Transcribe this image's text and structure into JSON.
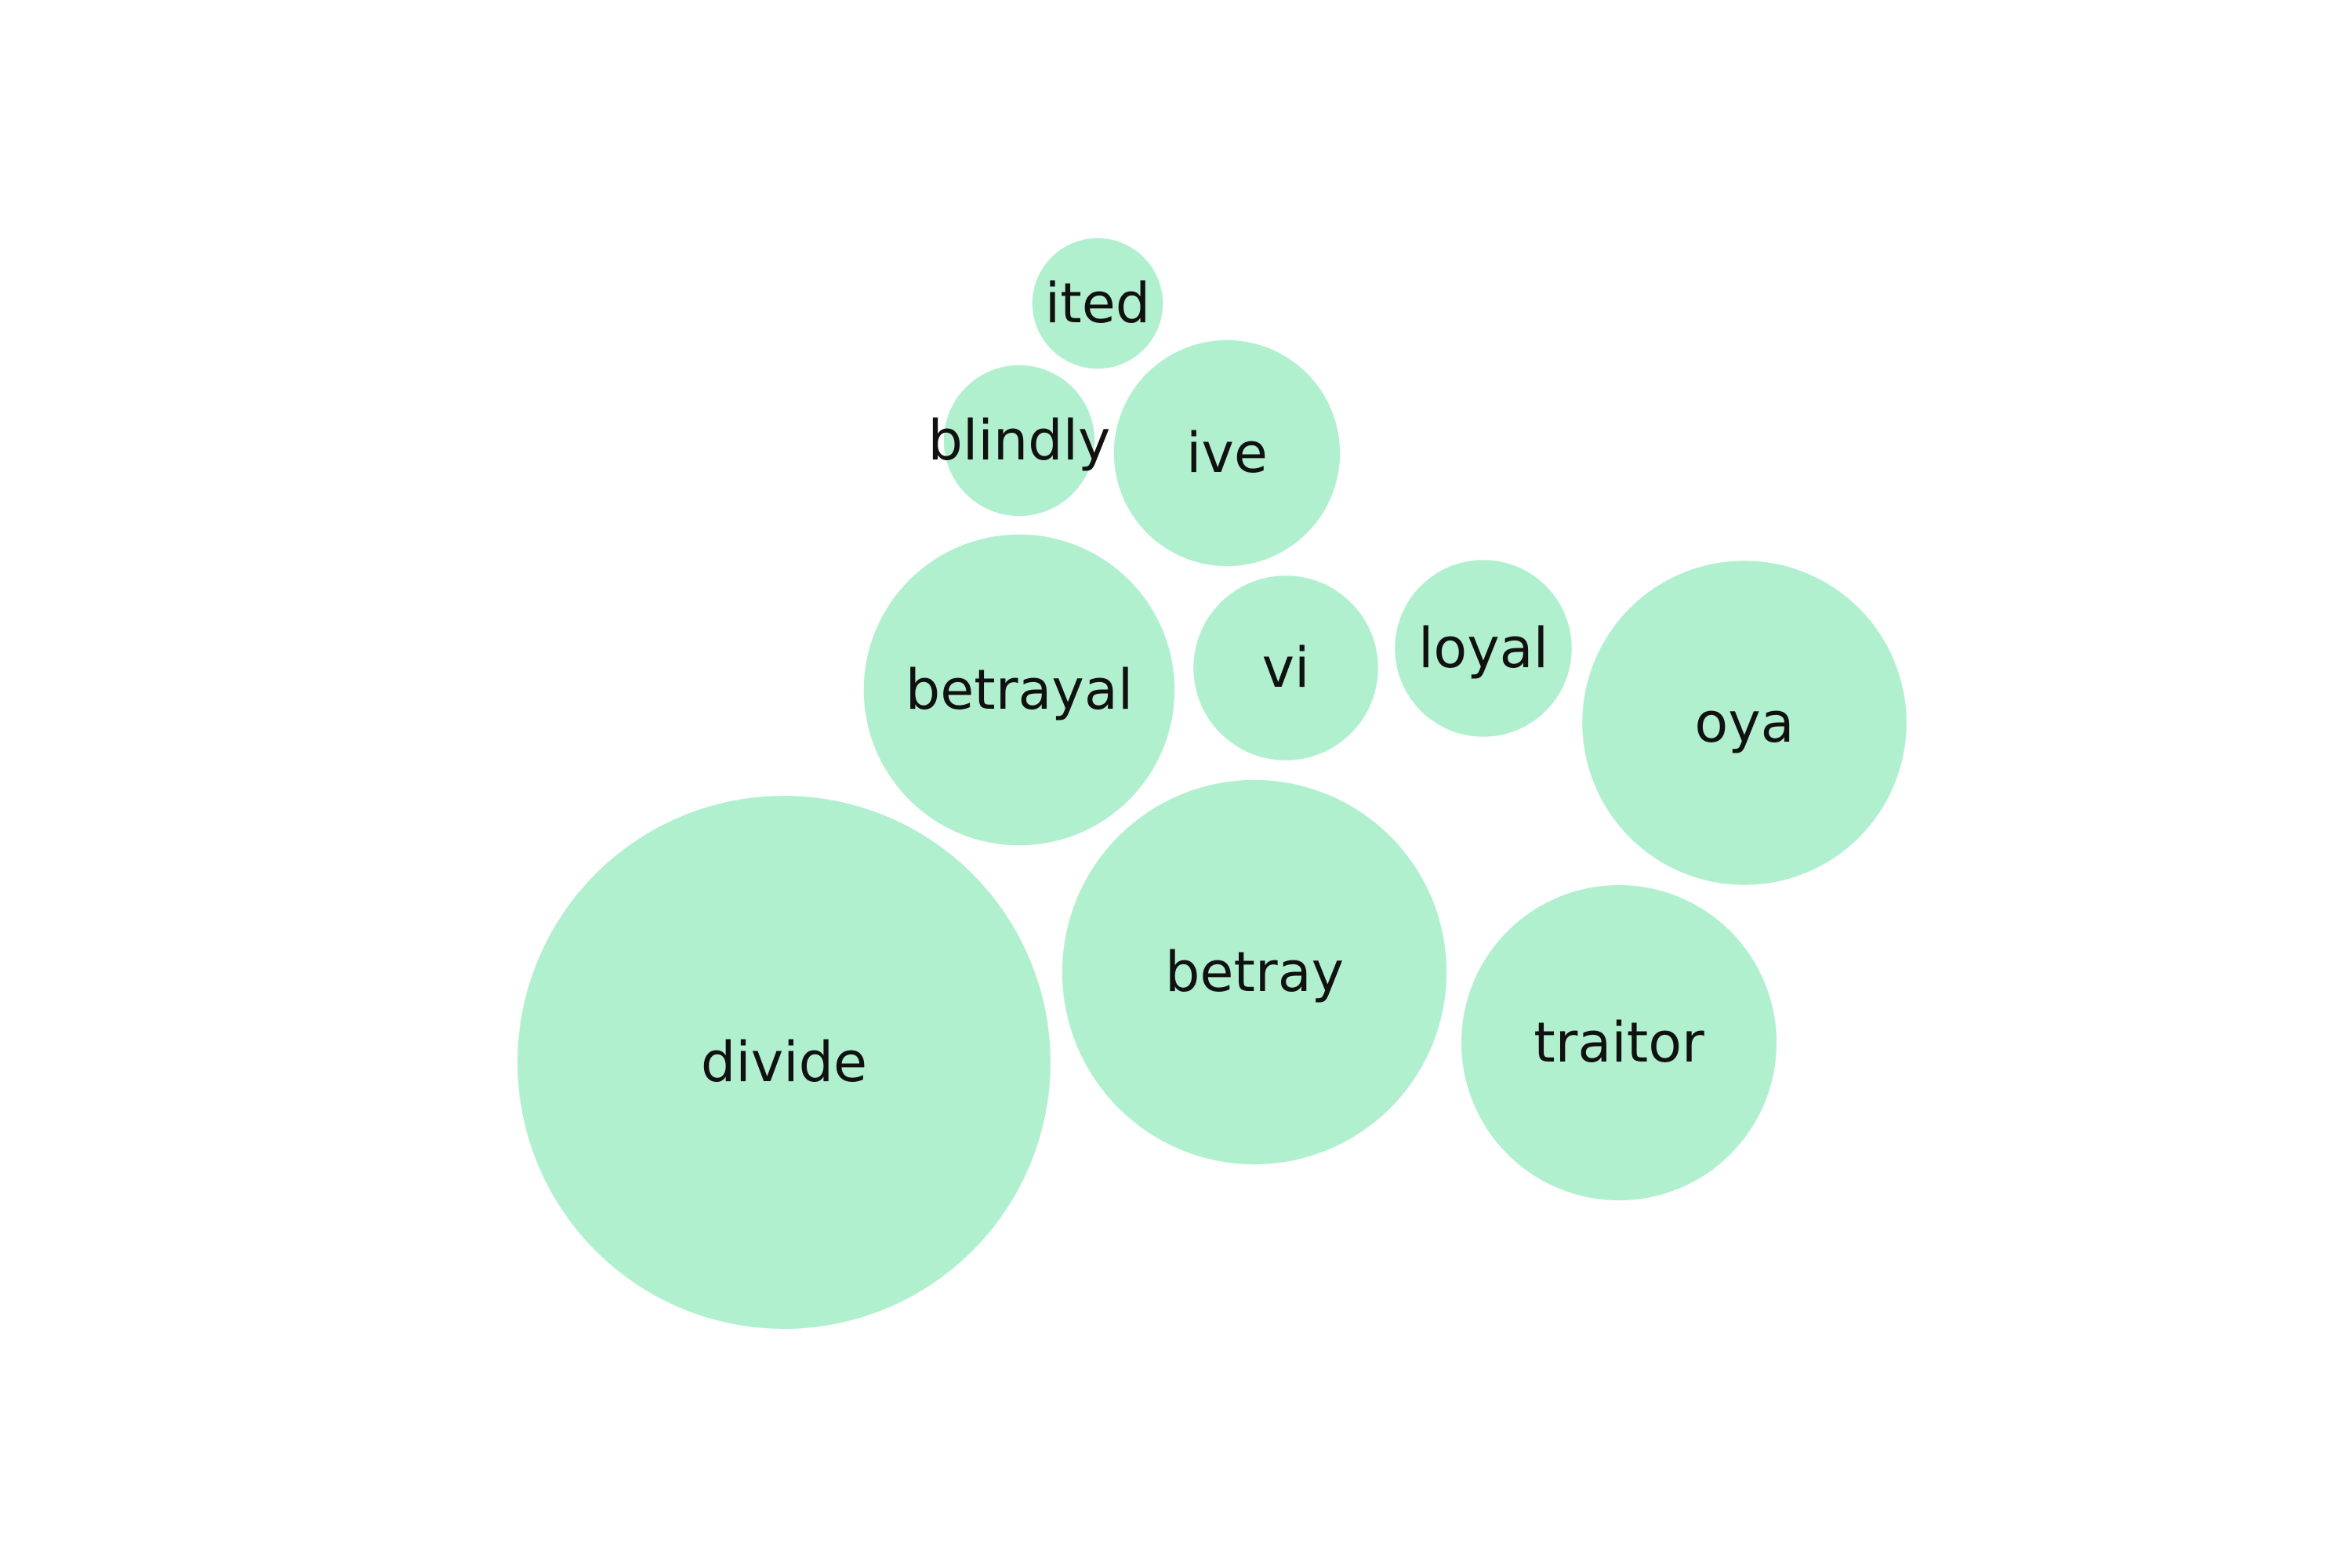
{
  "chart_data": {
    "type": "packed-bubble",
    "title": "",
    "colors": {
      "bubble_fill": "#b1f0cf",
      "label_text": "#111111",
      "background": "#ffffff"
    },
    "bubbles": [
      {
        "label": "divide",
        "value": 100
      },
      {
        "label": "betray",
        "value": 52
      },
      {
        "label": "traitor",
        "value": 35
      },
      {
        "label": "oya",
        "value": 37
      },
      {
        "label": "betrayal",
        "value": 34
      },
      {
        "label": "ive",
        "value": 18
      },
      {
        "label": "vi",
        "value": 12
      },
      {
        "label": "loyal",
        "value": 11
      },
      {
        "label": "blindly",
        "value": 8
      },
      {
        "label": "ited",
        "value": 6
      }
    ]
  }
}
